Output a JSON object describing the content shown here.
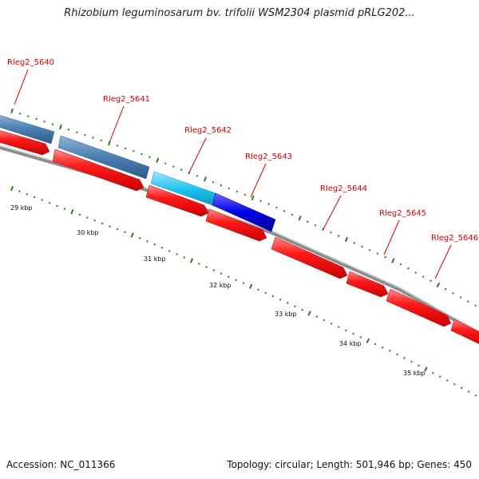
{
  "title": "Rhizobium leguminosarum bv. trifolii WSM2304 plasmid pRLG202...",
  "footer": {
    "accession": "Accession: NC_011366",
    "summary": "Topology: circular; Length: 501,946 bp; Genes: 450"
  },
  "colors": {
    "forward_cds": "#ff0000",
    "reverse_cds_steel": "#4a7fb0",
    "reverse_cds_cyan": "#22c4f0",
    "reverse_cds_blue": "#0000e6",
    "backbone": "#8c8c8c",
    "tick": "#2a7a1a",
    "gene_label": "#d40000"
  },
  "gene_labels": [
    "Rleg2_5640",
    "Rleg2_5641",
    "Rleg2_5642",
    "Rleg2_5643",
    "Rleg2_5644",
    "Rleg2_5645",
    "Rleg2_5646"
  ],
  "scale_labels": [
    "29 kbp",
    "30 kbp",
    "31 kbp",
    "32 kbp",
    "33 kbp",
    "34 kbp",
    "35 kbp"
  ]
}
